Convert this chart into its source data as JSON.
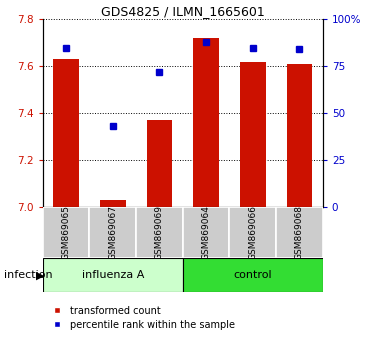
{
  "title": "GDS4825 / ILMN_1665601",
  "samples": [
    "GSM869065",
    "GSM869067",
    "GSM869069",
    "GSM869064",
    "GSM869066",
    "GSM869068"
  ],
  "group_labels": [
    "influenza A",
    "control"
  ],
  "bar_color": "#cc1100",
  "dot_color": "#0000cc",
  "transformed_counts": [
    7.63,
    7.03,
    7.37,
    7.72,
    7.62,
    7.61
  ],
  "percentile_ranks": [
    85,
    43,
    72,
    88,
    85,
    84
  ],
  "ylim_left": [
    7.0,
    7.8
  ],
  "ylim_right": [
    0,
    100
  ],
  "yticks_left": [
    7.0,
    7.2,
    7.4,
    7.6,
    7.8
  ],
  "yticks_right": [
    0,
    25,
    50,
    75,
    100
  ],
  "yticklabels_right": [
    "0",
    "25",
    "50",
    "75",
    "100%"
  ],
  "bar_width": 0.55,
  "legend_red_label": "transformed count",
  "legend_blue_label": "percentile rank within the sample",
  "infection_label": "infection",
  "influenza_bg": "#ccffcc",
  "control_bg": "#33dd33",
  "sample_box_color": "#cccccc",
  "title_fontsize": 9,
  "tick_fontsize": 7.5,
  "sample_fontsize": 6.5,
  "group_fontsize": 8,
  "legend_fontsize": 7,
  "infection_fontsize": 8
}
